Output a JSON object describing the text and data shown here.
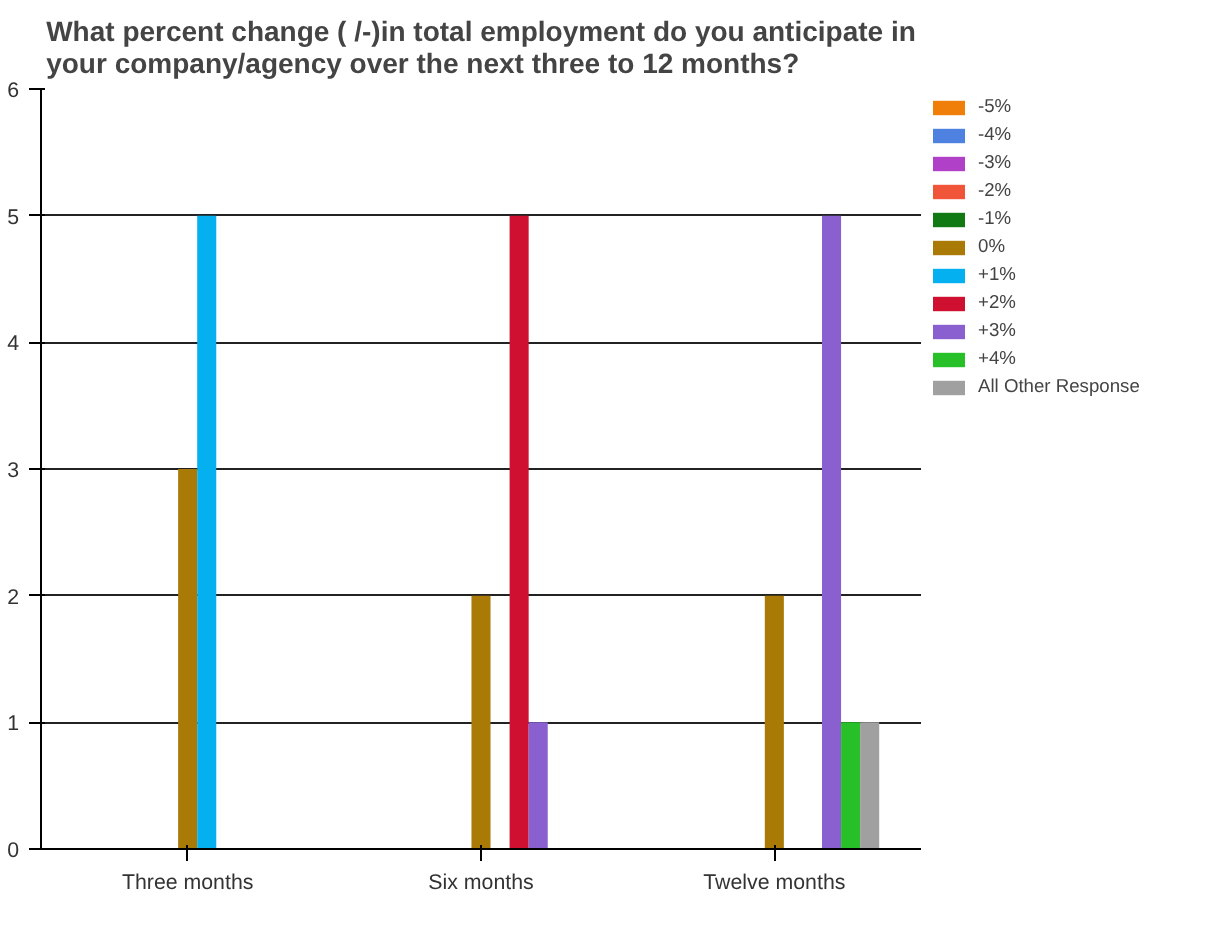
{
  "chart_data": {
    "type": "bar",
    "title": "What percent change ( /-)in total employment do you anticipate in\nyour company/agency over the next three to 12 months?",
    "categories": [
      "Three months",
      "Six months",
      "Twelve months"
    ],
    "series": [
      {
        "name": "-5%",
        "color": "#f07f09",
        "values": [
          0,
          0,
          0
        ]
      },
      {
        "name": "-4%",
        "color": "#4f81e0",
        "values": [
          0,
          0,
          0
        ]
      },
      {
        "name": "-3%",
        "color": "#b040c8",
        "values": [
          0,
          0,
          0
        ]
      },
      {
        "name": "-2%",
        "color": "#f0553a",
        "values": [
          0,
          0,
          0
        ]
      },
      {
        "name": "-1%",
        "color": "#127a12",
        "values": [
          0,
          0,
          0
        ]
      },
      {
        "name": "0%",
        "color": "#aa7a06",
        "values": [
          3,
          2,
          2
        ]
      },
      {
        "name": "+1%",
        "color": "#05b0f0",
        "values": [
          5,
          0,
          0
        ]
      },
      {
        "name": "+2%",
        "color": "#d01030",
        "values": [
          0,
          5,
          0
        ]
      },
      {
        "name": "+3%",
        "color": "#8a60d0",
        "values": [
          0,
          1,
          5
        ]
      },
      {
        "name": "+4%",
        "color": "#28c028",
        "values": [
          0,
          0,
          1
        ]
      },
      {
        "name": "All Other Response",
        "color": "#a0a0a0",
        "values": [
          0,
          0,
          1
        ]
      }
    ],
    "ylim": [
      0,
      6
    ],
    "yticks": [
      0,
      1,
      2,
      3,
      4,
      5,
      6
    ],
    "grid": "y",
    "legend": "right"
  }
}
